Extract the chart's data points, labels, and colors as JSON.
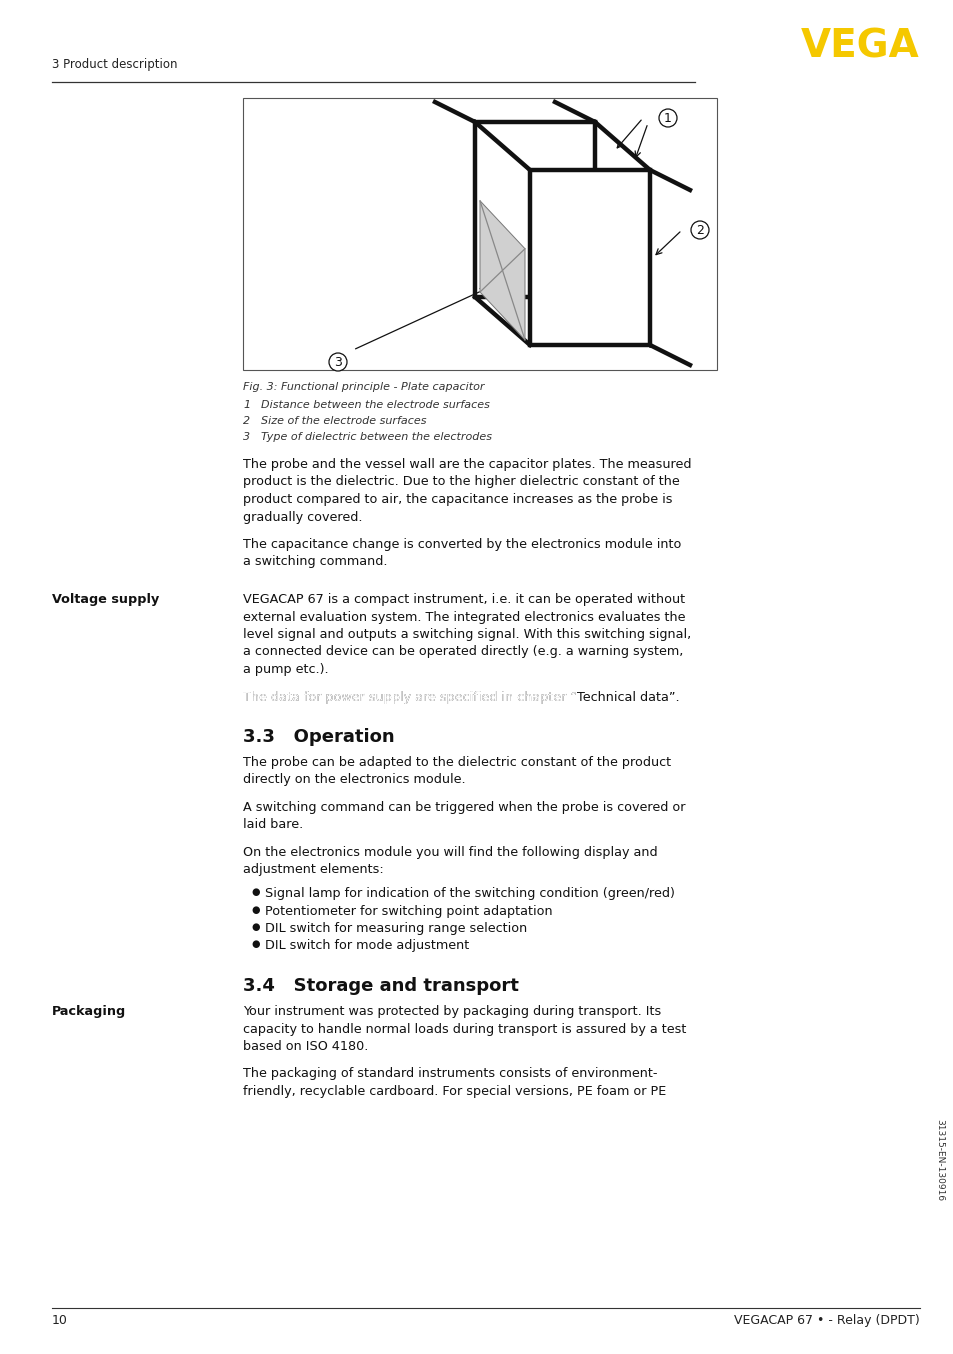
{
  "page_bg": "#ffffff",
  "header_section_text": "3 Product description",
  "header_vega_color": "#F5C800",
  "header_vega_text": "VEGA",
  "footer_page_num": "10",
  "footer_right_text": "VEGACAP 67 • - Relay (DPDT)",
  "sidebar_text": "31315-EN-130916",
  "fig_caption": "Fig. 3: Functional principle - Plate capacitor",
  "fig_items": [
    [
      "1",
      "Distance between the electrode surfaces"
    ],
    [
      "2",
      "Size of the electrode surfaces"
    ],
    [
      "3",
      "Type of dielectric between the electrodes"
    ]
  ],
  "para1_lines": [
    "The probe and the vessel wall are the capacitor plates. The measured",
    "product is the dielectric. Due to the higher dielectric constant of the",
    "product compared to air, the capacitance increases as the probe is",
    "gradually covered."
  ],
  "para2_lines": [
    "The capacitance change is converted by the electronics module into",
    "a switching command."
  ],
  "voltage_supply_label": "Voltage supply",
  "para3_lines": [
    "VEGACAP 67 is a compact instrument, i.e. it can be operated without",
    "external evaluation system. The integrated electronics evaluates the",
    "level signal and outputs a switching signal. With this switching signal,",
    "a connected device can be operated directly (e.g. a warning system,",
    "a pump etc.)."
  ],
  "para4_line1": "The data for power supply are specified in chapter “",
  "para4_italic": "Technical data",
  "para4_line2": "”.",
  "section_33_title": "3.3   Operation",
  "para5_lines": [
    "The probe can be adapted to the dielectric constant of the product",
    "directly on the electronics module."
  ],
  "para6_lines": [
    "A switching command can be triggered when the probe is covered or",
    "laid bare."
  ],
  "para7_lines": [
    "On the electronics module you will find the following display and",
    "adjustment elements:"
  ],
  "bullets": [
    "Signal lamp for indication of the switching condition (green/red)",
    "Potentiometer for switching point adaptation",
    "DIL switch for measuring range selection",
    "DIL switch for mode adjustment"
  ],
  "section_34_title": "3.4   Storage and transport",
  "packaging_label": "Packaging",
  "para8_lines": [
    "Your instrument was protected by packaging during transport. Its",
    "capacity to handle normal loads during transport is assured by a test",
    "based on ISO 4180."
  ],
  "para9_lines": [
    "The packaging of standard instruments consists of environment-",
    "friendly, recyclable cardboard. For special versions, PE foam or PE"
  ]
}
